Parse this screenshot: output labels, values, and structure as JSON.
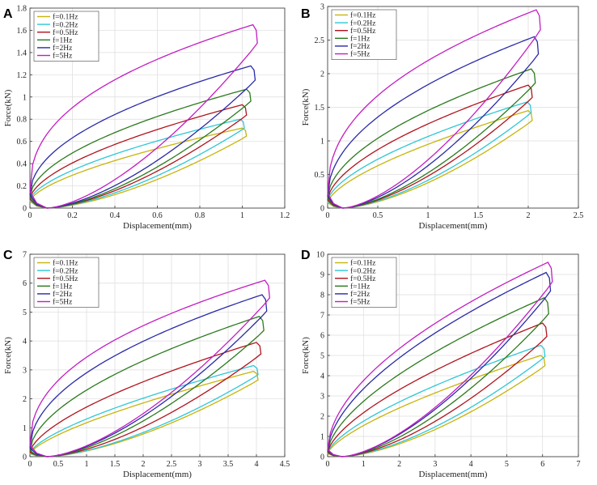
{
  "colors": {
    "f=0.1Hz": "#c8b40a",
    "f=0.2Hz": "#2ec7d6",
    "f=0.5Hz": "#b0141e",
    "f=1Hz": "#2c7a1e",
    "f=2Hz": "#2a2aa8",
    "f=5Hz": "#c21ec2"
  },
  "chart_data": [
    {
      "panel": "A",
      "type": "line",
      "title": "",
      "xlabel": "Displacement(mm)",
      "ylabel": "Force(kN)",
      "xlim": [
        0,
        1.2
      ],
      "ylim": [
        0,
        1.8
      ],
      "xticks": [
        "0",
        "0.2",
        "0.4",
        "0.6",
        "0.8",
        "1",
        "1.2"
      ],
      "yticks": [
        "0",
        "0.2",
        "0.4",
        "0.6",
        "0.8",
        "1",
        "1.2",
        "1.4",
        "1.6",
        "1.8"
      ],
      "legend_position": "top-left",
      "series": [
        {
          "name": "f=0.1Hz",
          "peak_x": 1.0,
          "peak_y": 0.72,
          "start_y": 0.06,
          "min_x": 0.08,
          "bulge": 0.4
        },
        {
          "name": "f=0.2Hz",
          "peak_x": 0.99,
          "peak_y": 0.8,
          "start_y": 0.07,
          "min_x": 0.08,
          "bulge": 0.42
        },
        {
          "name": "f=0.5Hz",
          "peak_x": 1.0,
          "peak_y": 0.93,
          "start_y": 0.08,
          "min_x": 0.08,
          "bulge": 0.45
        },
        {
          "name": "f=1Hz",
          "peak_x": 1.02,
          "peak_y": 1.07,
          "start_y": 0.1,
          "min_x": 0.08,
          "bulge": 0.5
        },
        {
          "name": "f=2Hz",
          "peak_x": 1.04,
          "peak_y": 1.28,
          "start_y": 0.12,
          "min_x": 0.08,
          "bulge": 0.56
        },
        {
          "name": "f=5Hz",
          "peak_x": 1.05,
          "peak_y": 1.65,
          "start_y": 0.15,
          "min_x": 0.08,
          "bulge": 0.65
        }
      ]
    },
    {
      "panel": "B",
      "type": "line",
      "title": "",
      "xlabel": "Displacement(mm)",
      "ylabel": "Force(kN)",
      "xlim": [
        0,
        2.5
      ],
      "ylim": [
        0,
        3
      ],
      "xticks": [
        "0",
        "0.5",
        "1",
        "1.5",
        "2",
        "2.5"
      ],
      "yticks": [
        "0",
        "0.5",
        "1",
        "1.5",
        "2",
        "2.5",
        "3"
      ],
      "legend_position": "top-left",
      "series": [
        {
          "name": "f=0.1Hz",
          "peak_x": 2.0,
          "peak_y": 1.45,
          "start_y": 0.08,
          "min_x": 0.15,
          "bulge": 0.38
        },
        {
          "name": "f=0.2Hz",
          "peak_x": 1.99,
          "peak_y": 1.58,
          "start_y": 0.1,
          "min_x": 0.15,
          "bulge": 0.42
        },
        {
          "name": "f=0.5Hz",
          "peak_x": 2.0,
          "peak_y": 1.83,
          "start_y": 0.12,
          "min_x": 0.15,
          "bulge": 0.45
        },
        {
          "name": "f=1Hz",
          "peak_x": 2.03,
          "peak_y": 2.07,
          "start_y": 0.15,
          "min_x": 0.15,
          "bulge": 0.5
        },
        {
          "name": "f=2Hz",
          "peak_x": 2.06,
          "peak_y": 2.55,
          "start_y": 0.18,
          "min_x": 0.15,
          "bulge": 0.56
        },
        {
          "name": "f=5Hz",
          "peak_x": 2.08,
          "peak_y": 2.95,
          "start_y": 0.22,
          "min_x": 0.15,
          "bulge": 0.62
        }
      ]
    },
    {
      "panel": "C",
      "type": "line",
      "title": "",
      "xlabel": "Displacement(mm)",
      "ylabel": "Force(kN)",
      "xlim": [
        0,
        4.5
      ],
      "ylim": [
        0,
        7
      ],
      "xticks": [
        "0",
        "0.5",
        "1",
        "1.5",
        "2",
        "2.5",
        "3",
        "3.5",
        "4",
        "4.5"
      ],
      "yticks": [
        "0",
        "1",
        "2",
        "3",
        "4",
        "5",
        "6",
        "7"
      ],
      "legend_position": "top-left",
      "series": [
        {
          "name": "f=0.1Hz",
          "peak_x": 3.95,
          "peak_y": 2.95,
          "start_y": 0.1,
          "min_x": 0.3,
          "bulge": 0.32
        },
        {
          "name": "f=0.2Hz",
          "peak_x": 3.95,
          "peak_y": 3.15,
          "start_y": 0.12,
          "min_x": 0.3,
          "bulge": 0.35
        },
        {
          "name": "f=0.5Hz",
          "peak_x": 4.0,
          "peak_y": 3.95,
          "start_y": 0.15,
          "min_x": 0.3,
          "bulge": 0.4
        },
        {
          "name": "f=1Hz",
          "peak_x": 4.05,
          "peak_y": 4.85,
          "start_y": 0.2,
          "min_x": 0.3,
          "bulge": 0.48
        },
        {
          "name": "f=2Hz",
          "peak_x": 4.1,
          "peak_y": 5.6,
          "start_y": 0.3,
          "min_x": 0.3,
          "bulge": 0.55
        },
        {
          "name": "f=5Hz",
          "peak_x": 4.15,
          "peak_y": 6.1,
          "start_y": 0.4,
          "min_x": 0.3,
          "bulge": 0.62
        }
      ]
    },
    {
      "panel": "D",
      "type": "line",
      "title": "",
      "xlabel": "Displacement(mm)",
      "ylabel": "Force(kN)",
      "xlim": [
        0,
        7
      ],
      "ylim": [
        0,
        10
      ],
      "xticks": [
        "0",
        "1",
        "2",
        "3",
        "4",
        "5",
        "6",
        "7"
      ],
      "yticks": [
        "0",
        "1",
        "2",
        "3",
        "4",
        "5",
        "6",
        "7",
        "8",
        "9",
        "10"
      ],
      "legend_position": "top-left",
      "series": [
        {
          "name": "f=0.1Hz",
          "peak_x": 5.95,
          "peak_y": 5.0,
          "start_y": 0.15,
          "min_x": 0.4,
          "bulge": 0.33
        },
        {
          "name": "f=0.2Hz",
          "peak_x": 5.95,
          "peak_y": 5.5,
          "start_y": 0.18,
          "min_x": 0.4,
          "bulge": 0.35
        },
        {
          "name": "f=0.5Hz",
          "peak_x": 6.0,
          "peak_y": 6.6,
          "start_y": 0.2,
          "min_x": 0.4,
          "bulge": 0.38
        },
        {
          "name": "f=1Hz",
          "peak_x": 6.05,
          "peak_y": 7.85,
          "start_y": 0.25,
          "min_x": 0.4,
          "bulge": 0.42
        },
        {
          "name": "f=2Hz",
          "peak_x": 6.1,
          "peak_y": 9.1,
          "start_y": 0.3,
          "min_x": 0.4,
          "bulge": 0.46
        },
        {
          "name": "f=5Hz",
          "peak_x": 6.15,
          "peak_y": 9.6,
          "start_y": 0.35,
          "min_x": 0.4,
          "bulge": 0.5
        }
      ]
    }
  ]
}
